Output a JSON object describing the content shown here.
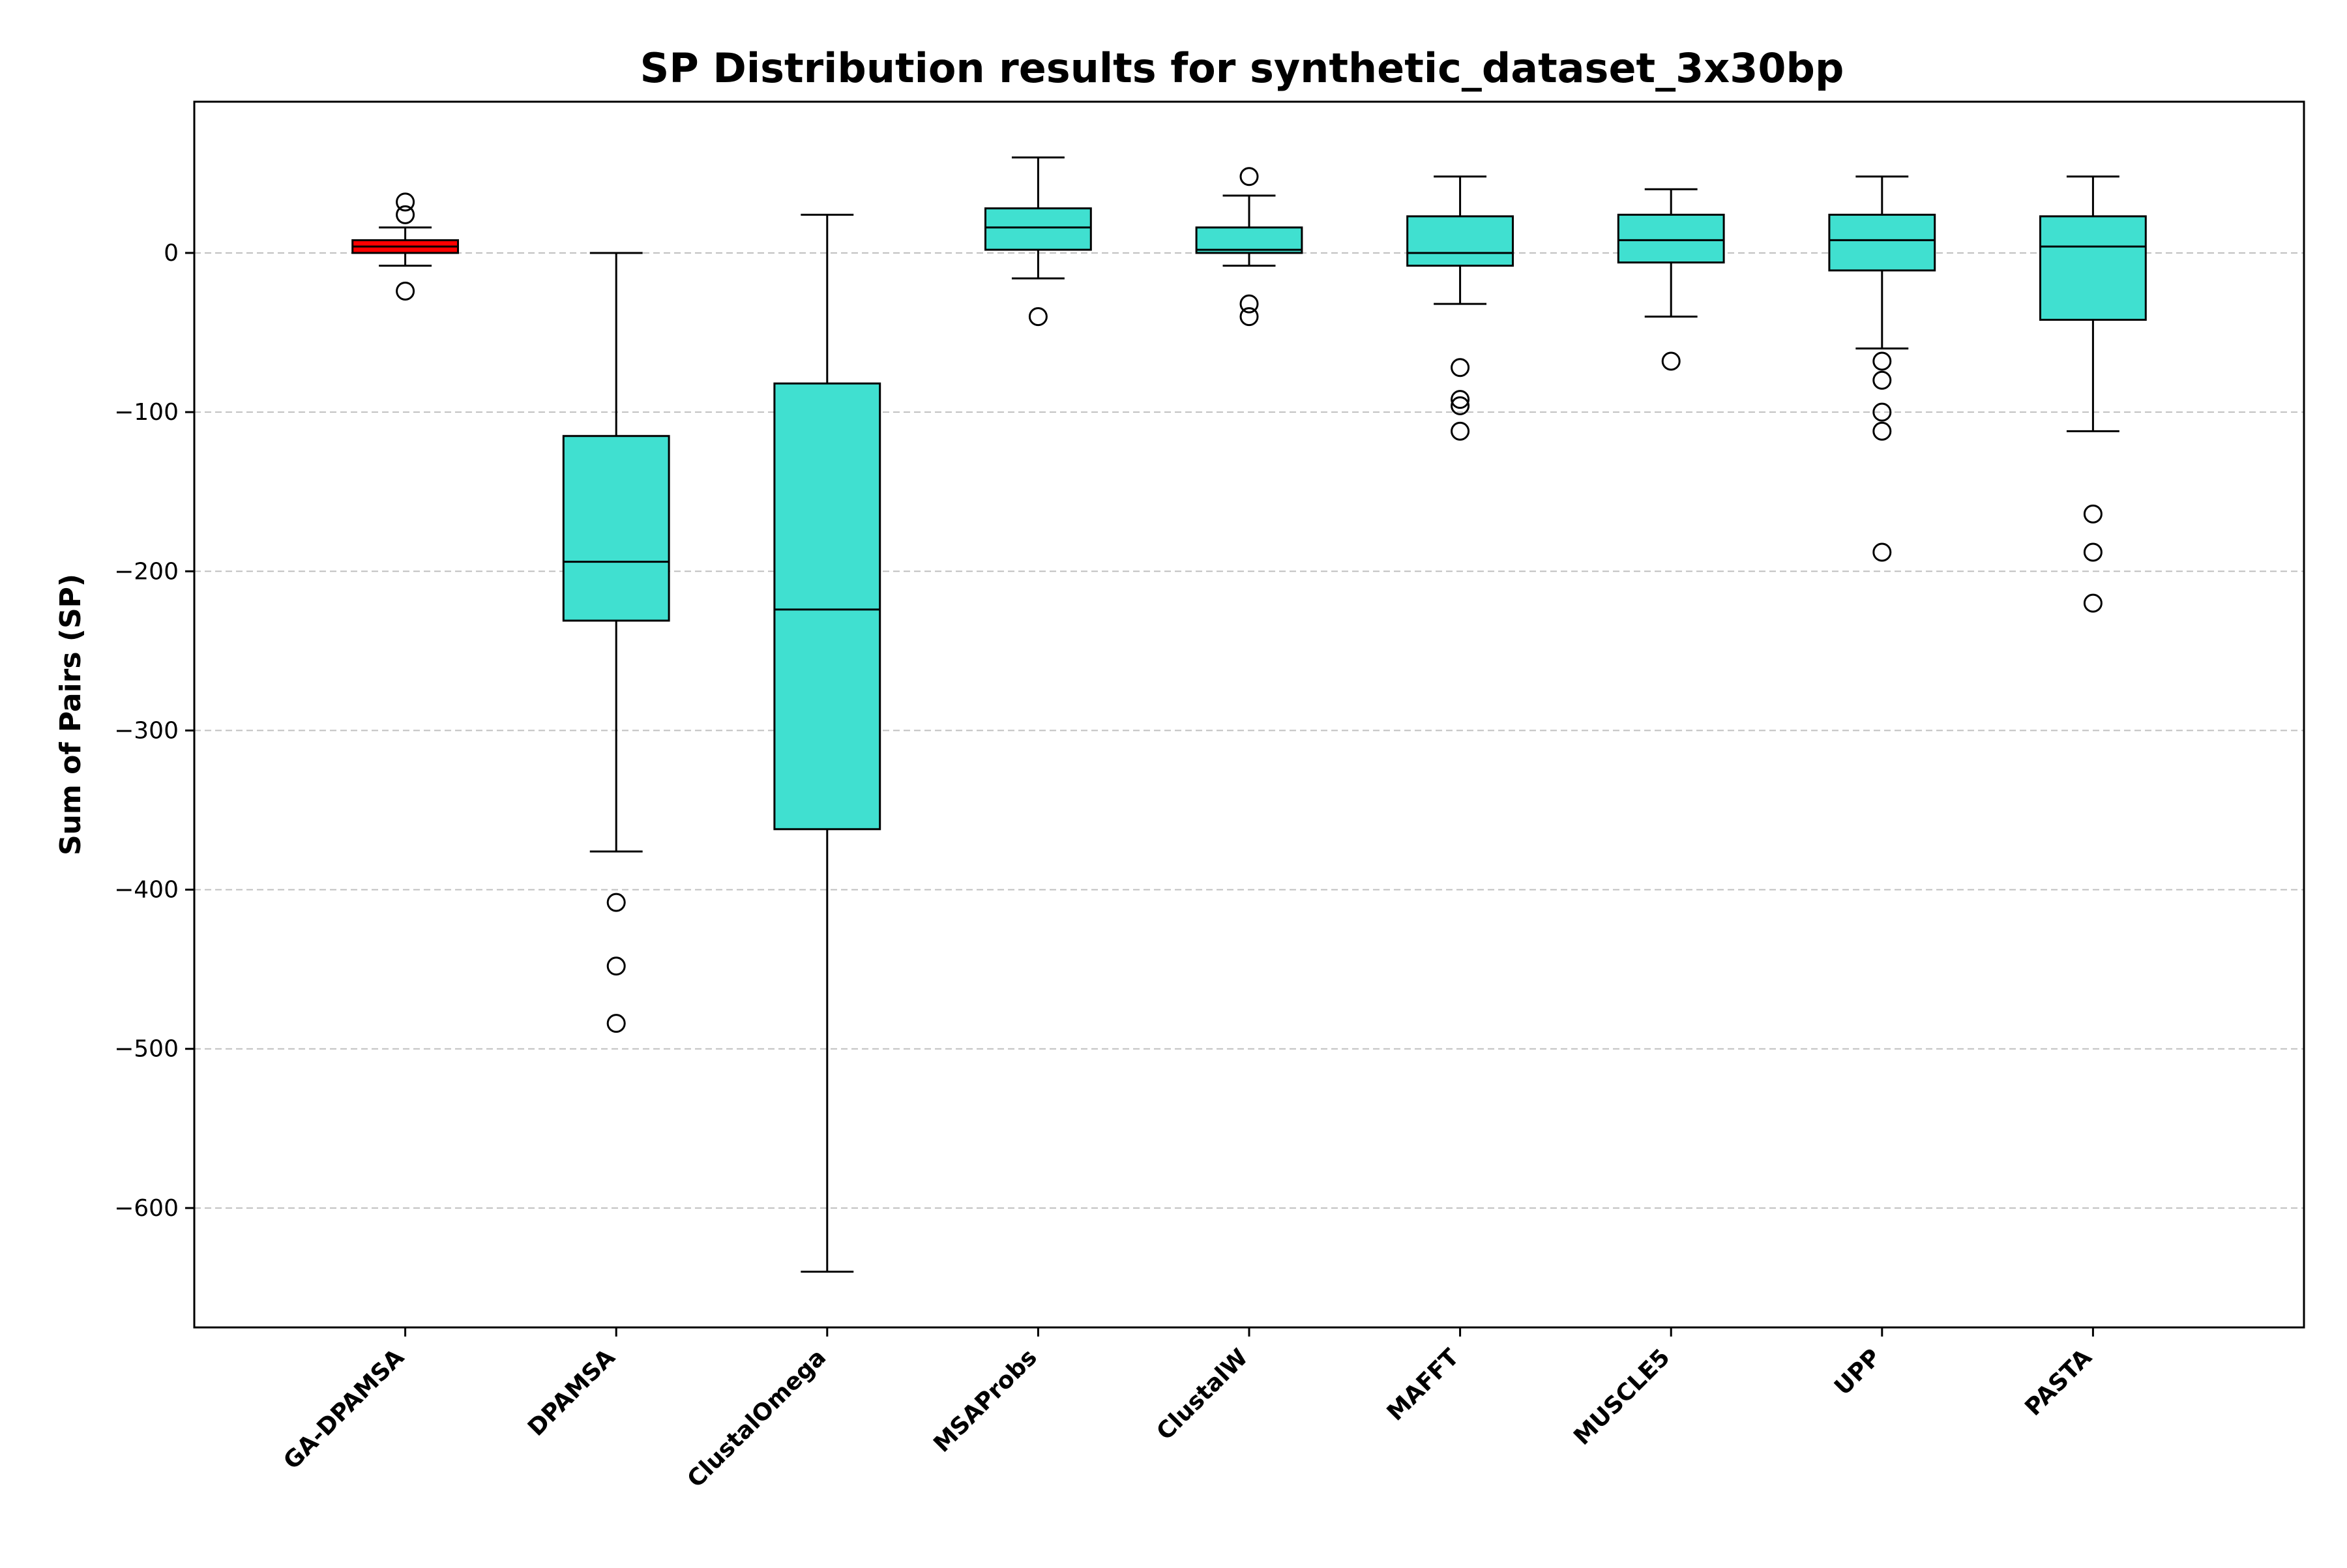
{
  "chart_data": {
    "type": "box",
    "title": "SP Distribution results for synthetic_dataset_3x30bp",
    "xlabel": "",
    "ylabel": "Sum of Pairs (SP)",
    "ylim": [
      -675,
      95
    ],
    "yticks": [
      0,
      -100,
      -200,
      -300,
      -400,
      -500,
      -600
    ],
    "ytick_labels": [
      "0",
      "−100",
      "−200",
      "−300",
      "−400",
      "−500",
      "−600"
    ],
    "grid": "horizontal dashed",
    "colors": {
      "highlight": "#ff0000",
      "box": "#40e0d0",
      "edge": "#000000",
      "grid": "#c0c0c0"
    },
    "categories": [
      "GA-DPAMSA",
      "DPAMSA",
      "ClustalOmega",
      "MSAProbs",
      "ClustalW",
      "MAFFT",
      "MUSCLE5",
      "UPP",
      "PASTA"
    ],
    "boxes": [
      {
        "name": "GA-DPAMSA",
        "whisker_low": -8,
        "q1": 0,
        "median": 4,
        "q3": 8,
        "whisker_high": 16,
        "outliers": [
          32,
          24,
          -24
        ],
        "color": "#ff0000"
      },
      {
        "name": "DPAMSA",
        "whisker_low": -376,
        "q1": -231,
        "median": -194,
        "q3": -115,
        "whisker_high": 0,
        "outliers": [
          -408,
          -448,
          -484
        ],
        "color": "#40e0d0"
      },
      {
        "name": "ClustalOmega",
        "whisker_low": -640,
        "q1": -362,
        "median": -224,
        "q3": -82,
        "whisker_high": 24,
        "outliers": [],
        "color": "#40e0d0"
      },
      {
        "name": "MSAProbs",
        "whisker_low": -16,
        "q1": 2,
        "median": 16,
        "q3": 28,
        "whisker_high": 60,
        "outliers": [
          -40
        ],
        "color": "#40e0d0"
      },
      {
        "name": "ClustalW",
        "whisker_low": -8,
        "q1": 0,
        "median": 2,
        "q3": 16,
        "whisker_high": 36,
        "outliers": [
          48,
          -32,
          -40
        ],
        "color": "#40e0d0"
      },
      {
        "name": "MAFFT",
        "whisker_low": -32,
        "q1": -8,
        "median": 0,
        "q3": 23,
        "whisker_high": 48,
        "outliers": [
          -72,
          -92,
          -96,
          -112
        ],
        "color": "#40e0d0"
      },
      {
        "name": "MUSCLE5",
        "whisker_low": -40,
        "q1": -6,
        "median": 8,
        "q3": 24,
        "whisker_high": 40,
        "outliers": [
          -68
        ],
        "color": "#40e0d0"
      },
      {
        "name": "UPP",
        "whisker_low": -60,
        "q1": -11,
        "median": 8,
        "q3": 24,
        "whisker_high": 48,
        "outliers": [
          -68,
          -80,
          -100,
          -112,
          -188
        ],
        "color": "#40e0d0"
      },
      {
        "name": "PASTA",
        "whisker_low": -112,
        "q1": -42,
        "median": 4,
        "q3": 23,
        "whisker_high": 48,
        "outliers": [
          -164,
          -188,
          -220
        ],
        "color": "#40e0d0"
      }
    ]
  }
}
